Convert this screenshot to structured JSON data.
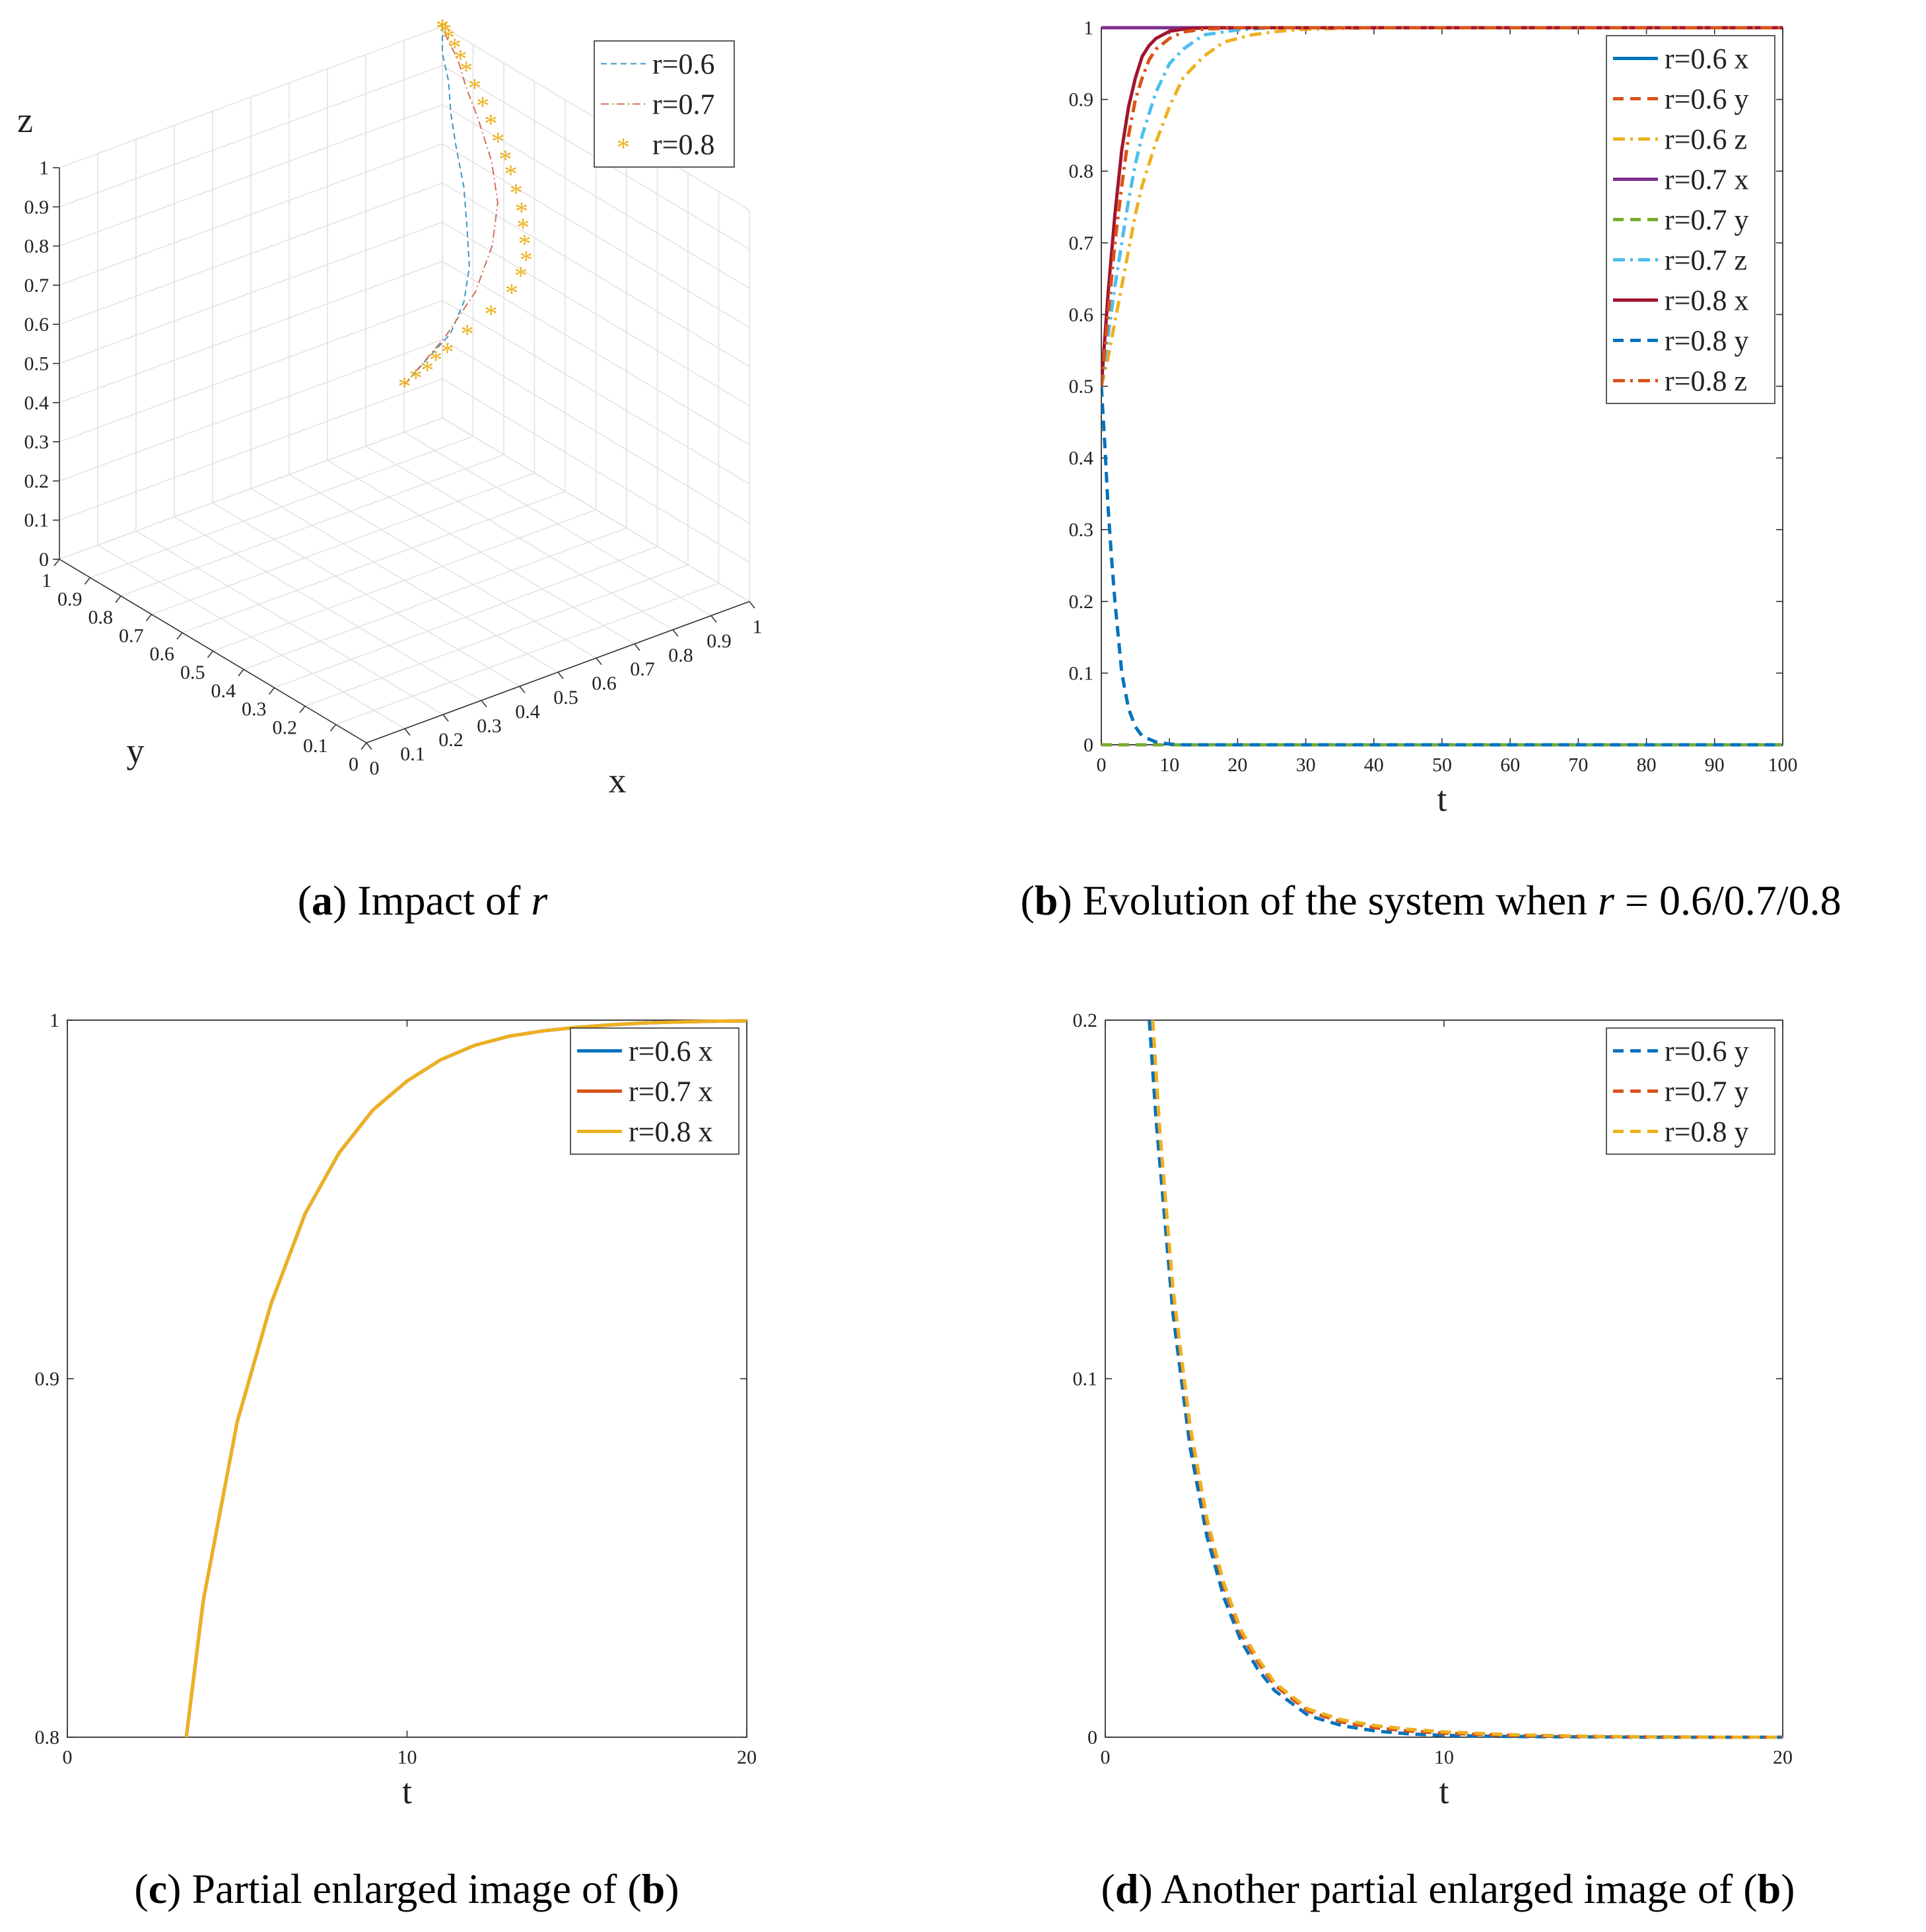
{
  "figure": {
    "captions": [
      {
        "id": "a",
        "label": "a",
        "parts": [
          ") Impact of ",
          "r",
          ""
        ]
      },
      {
        "id": "b",
        "label": "b",
        "parts": [
          ") Evolution of the system when ",
          "r",
          " = 0.6/0.7/0.8"
        ]
      },
      {
        "id": "c",
        "label": "c",
        "parts": [
          ") Partial enlarged image of (",
          "b",
          ")"
        ]
      },
      {
        "id": "d",
        "label": "d",
        "parts": [
          ") Another partial enlarged image of (",
          "b",
          ")"
        ]
      }
    ]
  },
  "colors": {
    "blue": "#0072BD",
    "orange": "#D95319",
    "yellow": "#EDB120",
    "purple": "#7E2F8E",
    "green": "#77AC30",
    "cyan": "#4DBEEE",
    "darkred": "#A2142F",
    "series3d_06": "#3a96c2",
    "series3d_07": "#d36d5a",
    "series3d_08": "#EDB120"
  },
  "chart_data": [
    {
      "id": "a",
      "type": "line3d",
      "xlabel": "x",
      "ylabel": "y",
      "zlabel": "z",
      "xlim": [
        0,
        1
      ],
      "ylim": [
        0,
        1
      ],
      "zlim": [
        0,
        1
      ],
      "ticks": [
        "0",
        "0.1",
        "0.2",
        "0.3",
        "0.4",
        "0.5",
        "0.6",
        "0.7",
        "0.8",
        "0.9",
        "1"
      ],
      "grid": true,
      "legend_position": "top-right",
      "series": [
        {
          "name": "r=0.6",
          "style": "dashed",
          "points": [
            [
              0.5,
              0.5,
              0.5
            ],
            [
              0.6,
              0.54,
              0.52
            ],
            [
              0.7,
              0.6,
              0.51
            ],
            [
              0.8,
              0.68,
              0.52
            ],
            [
              0.87,
              0.75,
              0.55
            ],
            [
              0.92,
              0.82,
              0.6
            ],
            [
              0.96,
              0.88,
              0.66
            ],
            [
              0.98,
              0.93,
              0.73
            ],
            [
              0.99,
              0.96,
              0.8
            ],
            [
              1,
              0.98,
              0.87
            ],
            [
              1,
              1,
              0.93
            ],
            [
              1,
              1,
              1
            ]
          ]
        },
        {
          "name": "r=0.7",
          "style": "dashdot",
          "points": [
            [
              0.5,
              0.5,
              0.5
            ],
            [
              0.63,
              0.53,
              0.56
            ],
            [
              0.75,
              0.58,
              0.61
            ],
            [
              0.85,
              0.65,
              0.66
            ],
            [
              0.92,
              0.72,
              0.71
            ],
            [
              0.96,
              0.79,
              0.77
            ],
            [
              0.98,
              0.86,
              0.84
            ],
            [
              0.99,
              0.91,
              0.89
            ],
            [
              1,
              0.95,
              0.94
            ],
            [
              1,
              0.98,
              0.97
            ],
            [
              1,
              1,
              1
            ]
          ]
        },
        {
          "name": "r=0.8",
          "style": "markers",
          "marker": "*",
          "points": [
            [
              0.5,
              0.5,
              0.5
            ],
            [
              0.53,
              0.5,
              0.51
            ],
            [
              0.56,
              0.5,
              0.52
            ],
            [
              0.59,
              0.51,
              0.53
            ],
            [
              0.62,
              0.51,
              0.54
            ],
            [
              0.68,
              0.52,
              0.56
            ],
            [
              0.75,
              0.53,
              0.58
            ],
            [
              0.82,
              0.55,
              0.6
            ],
            [
              0.86,
              0.57,
              0.62
            ],
            [
              0.89,
              0.59,
              0.64
            ],
            [
              0.91,
              0.62,
              0.66
            ],
            [
              0.93,
              0.65,
              0.68
            ],
            [
              0.95,
              0.68,
              0.7
            ],
            [
              0.96,
              0.71,
              0.73
            ],
            [
              0.97,
              0.74,
              0.76
            ],
            [
              0.98,
              0.77,
              0.78
            ],
            [
              0.985,
              0.8,
              0.81
            ],
            [
              0.99,
              0.83,
              0.84
            ],
            [
              0.993,
              0.86,
              0.87
            ],
            [
              0.996,
              0.89,
              0.9
            ],
            [
              0.998,
              0.92,
              0.93
            ],
            [
              0.999,
              0.94,
              0.95
            ],
            [
              1,
              0.96,
              0.97
            ],
            [
              1,
              0.98,
              0.985
            ],
            [
              1,
              0.99,
              0.995
            ],
            [
              1,
              1,
              1
            ],
            [
              1,
              1,
              1
            ],
            [
              1,
              1,
              1
            ]
          ]
        }
      ]
    },
    {
      "id": "b",
      "type": "line",
      "xlabel": "t",
      "ylabel": "",
      "xlim": [
        0,
        100
      ],
      "ylim": [
        0,
        1
      ],
      "xticks": [
        "0",
        "10",
        "20",
        "30",
        "40",
        "50",
        "60",
        "70",
        "80",
        "90",
        "100"
      ],
      "yticks": [
        "0",
        "0.1",
        "0.2",
        "0.3",
        "0.4",
        "0.5",
        "0.6",
        "0.7",
        "0.8",
        "0.9",
        "1"
      ],
      "legend_position": "top-right",
      "series": [
        {
          "name": "r=0.6 x",
          "color": "blue",
          "style": "solid",
          "x": [
            0,
            100
          ],
          "y": [
            1,
            1
          ]
        },
        {
          "name": "r=0.6 y",
          "color": "orange",
          "style": "dashed",
          "x": [
            0,
            100
          ],
          "y": [
            0,
            0
          ]
        },
        {
          "name": "r=0.6 z",
          "color": "yellow",
          "style": "dashdot",
          "x": [
            0,
            1,
            2,
            3,
            4,
            5,
            6,
            8,
            10,
            12,
            15,
            18,
            22,
            26,
            30,
            40,
            50,
            100
          ],
          "y": [
            0.5,
            0.54,
            0.59,
            0.64,
            0.69,
            0.74,
            0.78,
            0.84,
            0.89,
            0.93,
            0.96,
            0.98,
            0.99,
            0.995,
            0.998,
            1,
            1,
            1
          ]
        },
        {
          "name": "r=0.7 x",
          "color": "purple",
          "style": "solid",
          "x": [
            0,
            100
          ],
          "y": [
            1,
            1
          ]
        },
        {
          "name": "r=0.7 y",
          "color": "green",
          "style": "dashed",
          "x": [
            0,
            100
          ],
          "y": [
            0,
            0
          ]
        },
        {
          "name": "r=0.7 z",
          "color": "cyan",
          "style": "dashdot",
          "x": [
            0,
            1,
            2,
            3,
            4,
            5,
            6,
            8,
            10,
            12,
            15,
            20,
            25,
            30,
            100
          ],
          "y": [
            0.5,
            0.57,
            0.64,
            0.7,
            0.76,
            0.81,
            0.85,
            0.91,
            0.95,
            0.97,
            0.99,
            0.997,
            1,
            1,
            1
          ]
        },
        {
          "name": "r=0.8 x",
          "color": "darkred",
          "style": "solid",
          "x": [
            0,
            1,
            2,
            3,
            4,
            5,
            6,
            7,
            8,
            10,
            12,
            15,
            20,
            100
          ],
          "y": [
            0.5,
            0.63,
            0.74,
            0.83,
            0.89,
            0.93,
            0.96,
            0.975,
            0.985,
            0.995,
            0.998,
            1,
            1,
            1
          ]
        },
        {
          "name": "r=0.8 y",
          "color": "blue",
          "style": "dashed",
          "x": [
            0,
            0.5,
            1,
            1.5,
            2,
            2.5,
            3,
            4,
            5,
            6,
            8,
            10,
            12,
            15,
            20,
            100
          ],
          "y": [
            0.5,
            0.42,
            0.33,
            0.26,
            0.2,
            0.15,
            0.1,
            0.05,
            0.025,
            0.012,
            0.004,
            0.001,
            0,
            0,
            0,
            0
          ]
        },
        {
          "name": "r=0.8 z",
          "color": "orange",
          "style": "dashdot",
          "x": [
            0,
            1,
            2,
            3,
            4,
            5,
            6,
            7,
            8,
            10,
            12,
            15,
            20,
            100
          ],
          "y": [
            0.5,
            0.6,
            0.7,
            0.78,
            0.85,
            0.9,
            0.93,
            0.955,
            0.97,
            0.985,
            0.994,
            0.998,
            1,
            1
          ]
        }
      ]
    },
    {
      "id": "c",
      "type": "line",
      "xlabel": "t",
      "ylabel": "",
      "xlim": [
        0,
        20
      ],
      "ylim": [
        0.8,
        1
      ],
      "xticks": [
        "0",
        "10",
        "20"
      ],
      "yticks": [
        "0.8",
        "0.9",
        "1"
      ],
      "legend_position": "top-right",
      "series": [
        {
          "name": "r=0.6 x",
          "color": "blue",
          "style": "solid",
          "x": [
            3.5,
            4,
            5,
            6,
            7,
            8,
            9,
            10,
            11,
            12,
            13,
            14,
            15,
            16,
            17,
            18,
            19,
            20
          ],
          "y": [
            0.8,
            0.838,
            0.888,
            0.921,
            0.946,
            0.963,
            0.975,
            0.983,
            0.989,
            0.993,
            0.9955,
            0.997,
            0.998,
            0.9987,
            0.9992,
            0.9995,
            0.9997,
            0.9998
          ]
        },
        {
          "name": "r=0.7 x",
          "color": "orange",
          "style": "solid",
          "x": [
            3.5,
            4,
            5,
            6,
            7,
            8,
            9,
            10,
            11,
            12,
            13,
            14,
            15,
            16,
            17,
            18,
            19,
            20
          ],
          "y": [
            0.8,
            0.838,
            0.888,
            0.921,
            0.946,
            0.963,
            0.975,
            0.983,
            0.989,
            0.993,
            0.9955,
            0.997,
            0.998,
            0.9987,
            0.9992,
            0.9995,
            0.9997,
            0.9998
          ]
        },
        {
          "name": "r=0.8 x",
          "color": "yellow",
          "style": "solid",
          "x": [
            3.5,
            4,
            5,
            6,
            7,
            8,
            9,
            10,
            11,
            12,
            13,
            14,
            15,
            16,
            17,
            18,
            19,
            20
          ],
          "y": [
            0.8,
            0.838,
            0.888,
            0.921,
            0.946,
            0.963,
            0.975,
            0.983,
            0.989,
            0.993,
            0.9955,
            0.997,
            0.998,
            0.9987,
            0.9992,
            0.9995,
            0.9997,
            0.9998
          ]
        }
      ]
    },
    {
      "id": "d",
      "type": "line",
      "xlabel": "t",
      "ylabel": "",
      "xlim": [
        0,
        20
      ],
      "ylim": [
        0,
        0.2
      ],
      "xticks": [
        "0",
        "10",
        "20"
      ],
      "yticks": [
        "0",
        "0.1",
        "0.2"
      ],
      "legend_position": "top-right",
      "series": [
        {
          "name": "r=0.6 y",
          "color": "blue",
          "style": "dashed",
          "x": [
            1.3,
            1.5,
            2,
            2.5,
            3,
            3.5,
            4,
            4.5,
            5,
            6,
            7,
            8,
            9,
            10,
            12,
            14,
            16,
            18,
            20
          ],
          "y": [
            0.2,
            0.172,
            0.118,
            0.081,
            0.056,
            0.039,
            0.027,
            0.019,
            0.013,
            0.006,
            0.0032,
            0.0017,
            0.0009,
            0.0005,
            0.0002,
            0.0001,
            0,
            0,
            0
          ]
        },
        {
          "name": "r=0.7 y",
          "color": "orange",
          "style": "dashed",
          "x": [
            1.4,
            1.6,
            2,
            2.5,
            3,
            3.5,
            4,
            4.5,
            5,
            6,
            7,
            8,
            9,
            10,
            12,
            14,
            16,
            18,
            20
          ],
          "y": [
            0.2,
            0.17,
            0.124,
            0.086,
            0.06,
            0.042,
            0.029,
            0.021,
            0.0145,
            0.0072,
            0.0042,
            0.0026,
            0.0017,
            0.0011,
            0.0005,
            0.0002,
            0.0001,
            0,
            0
          ]
        },
        {
          "name": "r=0.8 y",
          "color": "yellow",
          "style": "dashed",
          "x": [
            1.4,
            1.6,
            2,
            2.5,
            3,
            3.5,
            4,
            4.5,
            5,
            6,
            7,
            8,
            9,
            10,
            12,
            14,
            16,
            18,
            20
          ],
          "y": [
            0.2,
            0.17,
            0.125,
            0.087,
            0.061,
            0.043,
            0.03,
            0.022,
            0.0152,
            0.0078,
            0.0048,
            0.0032,
            0.0022,
            0.0015,
            0.0007,
            0.0003,
            0.0001,
            0,
            0
          ]
        }
      ]
    }
  ]
}
